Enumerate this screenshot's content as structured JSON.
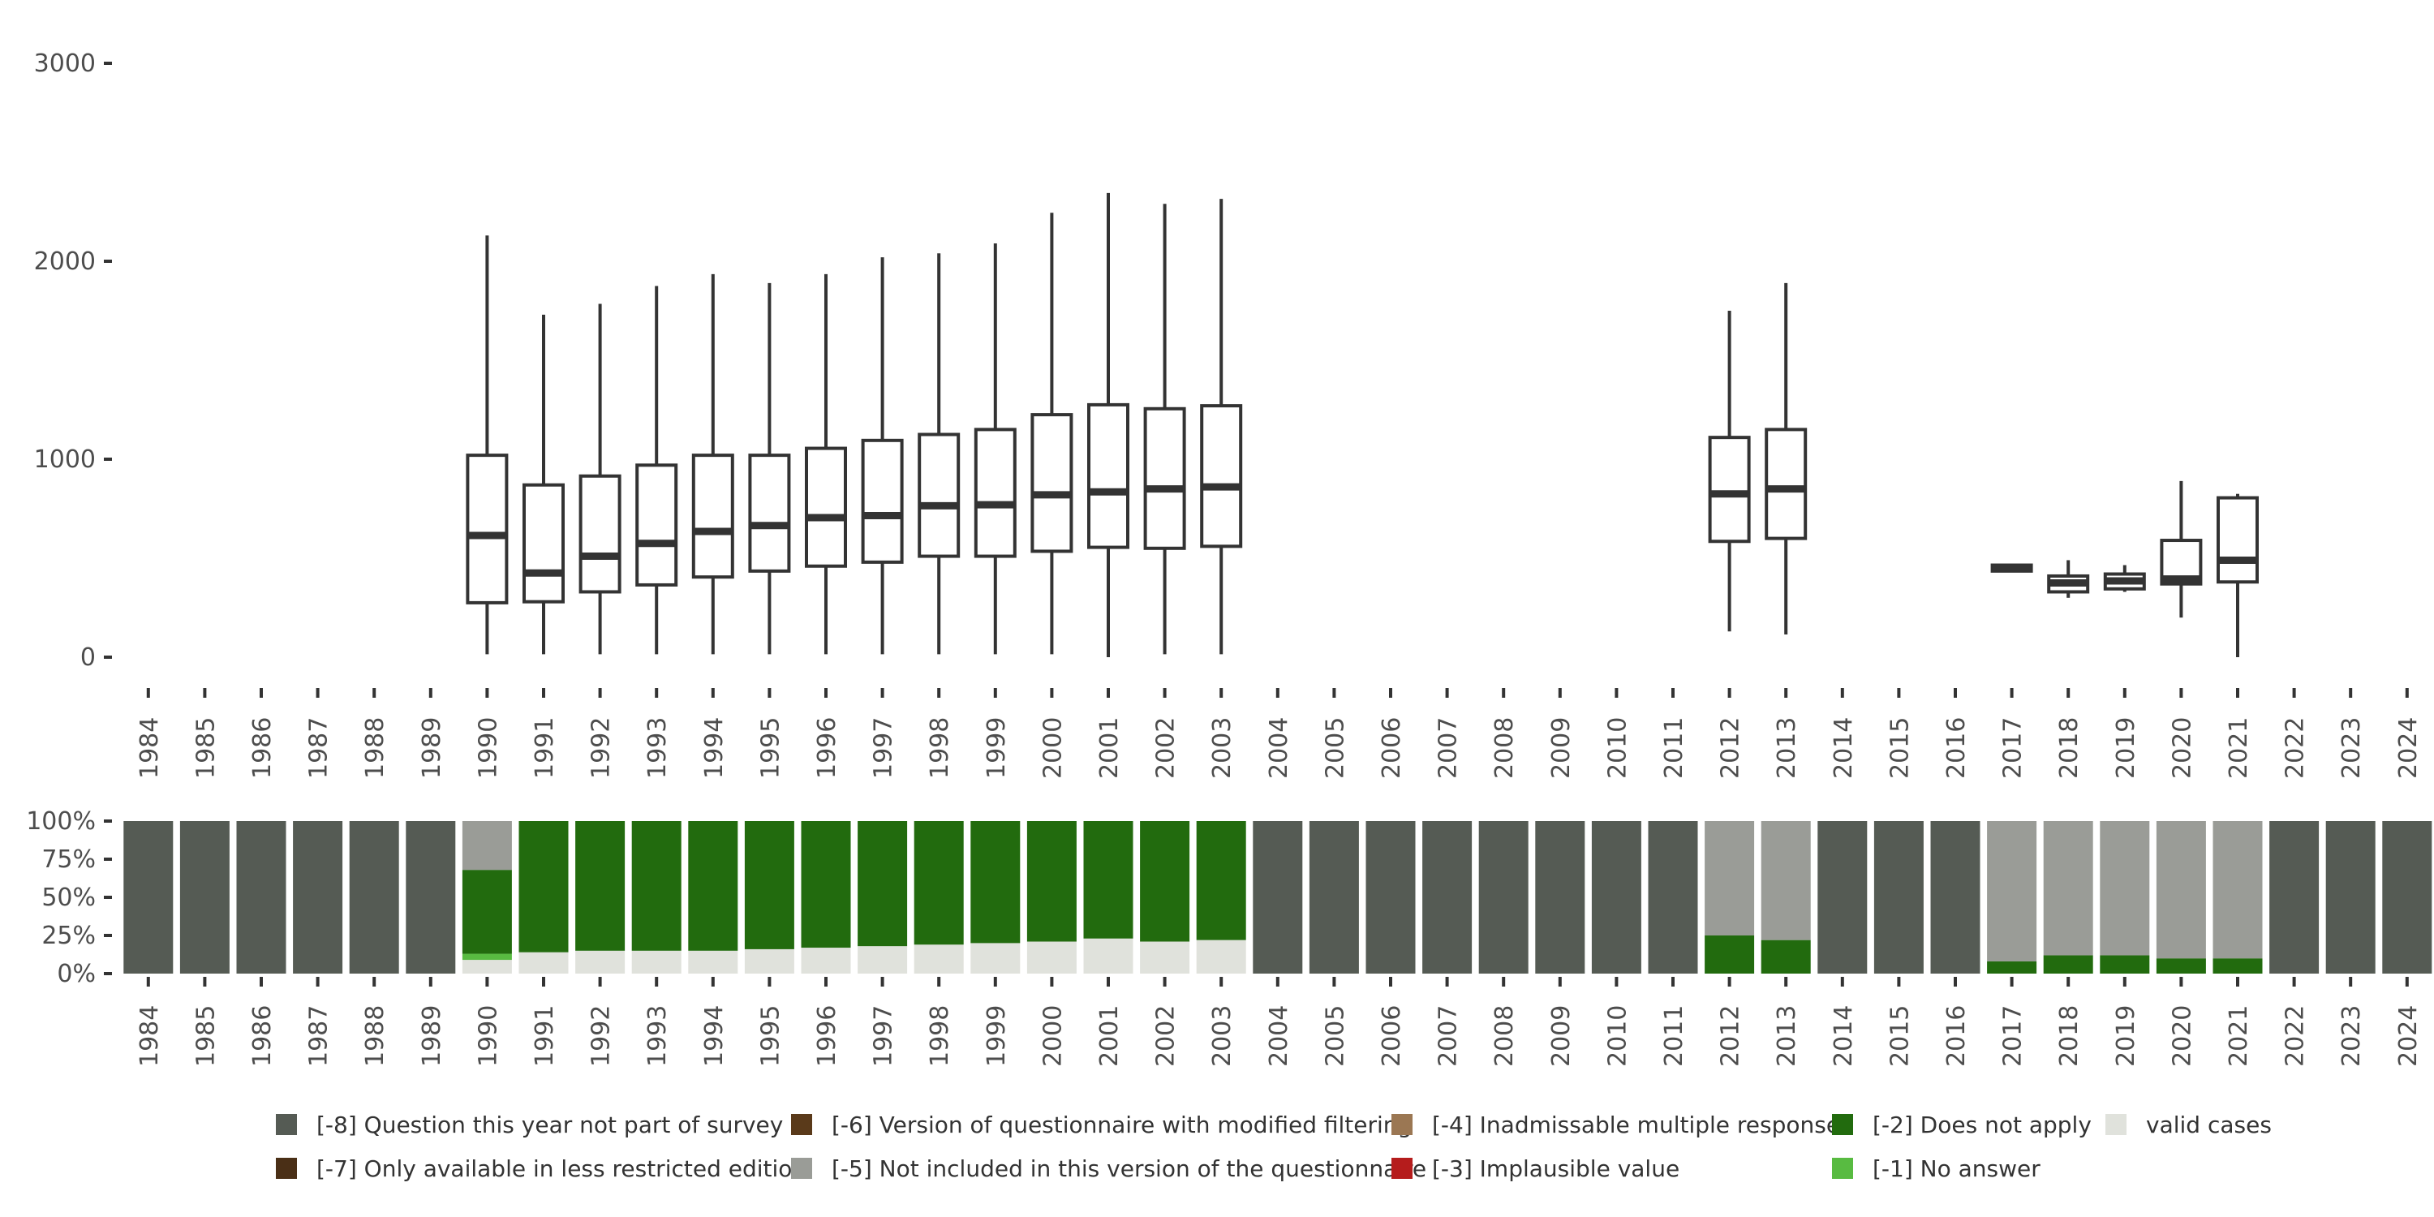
{
  "chart_data": [
    {
      "type": "boxplot",
      "title": "",
      "xlabel": "",
      "ylabel": "",
      "ylim": [
        0,
        3000
      ],
      "yticks": [
        0,
        1000,
        2000,
        3000
      ],
      "ytick_labels": [
        "0",
        "1000",
        "2000",
        "3000"
      ],
      "categories": [
        "1984",
        "1985",
        "1986",
        "1987",
        "1988",
        "1989",
        "1990",
        "1991",
        "1992",
        "1993",
        "1994",
        "1995",
        "1996",
        "1997",
        "1998",
        "1999",
        "2000",
        "2001",
        "2002",
        "2003",
        "2004",
        "2005",
        "2006",
        "2007",
        "2008",
        "2009",
        "2010",
        "2011",
        "2012",
        "2013",
        "2014",
        "2015",
        "2016",
        "2017",
        "2018",
        "2019",
        "2020",
        "2021",
        "2022",
        "2023",
        "2024"
      ],
      "boxes": [
        {
          "year": "1990",
          "min": 15,
          "q1": 275,
          "median": 615,
          "q3": 1020,
          "max": 2130
        },
        {
          "year": "1991",
          "min": 15,
          "q1": 280,
          "median": 425,
          "q3": 870,
          "max": 1730
        },
        {
          "year": "1992",
          "min": 15,
          "q1": 330,
          "median": 510,
          "q3": 915,
          "max": 1785
        },
        {
          "year": "1993",
          "min": 15,
          "q1": 365,
          "median": 575,
          "q3": 970,
          "max": 1875
        },
        {
          "year": "1994",
          "min": 15,
          "q1": 405,
          "median": 635,
          "q3": 1020,
          "max": 1935
        },
        {
          "year": "1995",
          "min": 15,
          "q1": 435,
          "median": 665,
          "q3": 1020,
          "max": 1890
        },
        {
          "year": "1996",
          "min": 15,
          "q1": 460,
          "median": 705,
          "q3": 1055,
          "max": 1935
        },
        {
          "year": "1997",
          "min": 15,
          "q1": 480,
          "median": 715,
          "q3": 1095,
          "max": 2020
        },
        {
          "year": "1998",
          "min": 15,
          "q1": 510,
          "median": 765,
          "q3": 1125,
          "max": 2040
        },
        {
          "year": "1999",
          "min": 15,
          "q1": 510,
          "median": 770,
          "q3": 1150,
          "max": 2090
        },
        {
          "year": "2000",
          "min": 15,
          "q1": 535,
          "median": 820,
          "q3": 1225,
          "max": 2245
        },
        {
          "year": "2001",
          "min": 0,
          "q1": 555,
          "median": 835,
          "q3": 1275,
          "max": 2345
        },
        {
          "year": "2002",
          "min": 15,
          "q1": 550,
          "median": 850,
          "q3": 1255,
          "max": 2290
        },
        {
          "year": "2003",
          "min": 15,
          "q1": 560,
          "median": 860,
          "q3": 1270,
          "max": 2315
        },
        {
          "year": "2012",
          "min": 130,
          "q1": 585,
          "median": 825,
          "q3": 1110,
          "max": 1750
        },
        {
          "year": "2013",
          "min": 115,
          "q1": 600,
          "median": 850,
          "q3": 1150,
          "max": 1890
        },
        {
          "year": "2017",
          "min": 435,
          "q1": 435,
          "median": 450,
          "q3": 465,
          "max": 465
        },
        {
          "year": "2018",
          "min": 300,
          "q1": 330,
          "median": 375,
          "q3": 410,
          "max": 490
        },
        {
          "year": "2019",
          "min": 330,
          "q1": 345,
          "median": 385,
          "q3": 420,
          "max": 465
        },
        {
          "year": "2020",
          "min": 200,
          "q1": 370,
          "median": 395,
          "q3": 590,
          "max": 890
        },
        {
          "year": "2021",
          "min": 0,
          "q1": 380,
          "median": 490,
          "q3": 805,
          "max": 825
        }
      ]
    },
    {
      "type": "stacked_bar",
      "title": "",
      "xlabel": "",
      "ylabel": "",
      "ylim": [
        0,
        100
      ],
      "yticks": [
        0,
        25,
        50,
        75,
        100
      ],
      "ytick_labels": [
        "0%",
        "25%",
        "50%",
        "75%",
        "100%"
      ],
      "categories": [
        "1984",
        "1985",
        "1986",
        "1987",
        "1988",
        "1989",
        "1990",
        "1991",
        "1992",
        "1993",
        "1994",
        "1995",
        "1996",
        "1997",
        "1998",
        "1999",
        "2000",
        "2001",
        "2002",
        "2003",
        "2004",
        "2005",
        "2006",
        "2007",
        "2008",
        "2009",
        "2010",
        "2011",
        "2012",
        "2013",
        "2014",
        "2015",
        "2016",
        "2017",
        "2018",
        "2019",
        "2020",
        "2021",
        "2022",
        "2023",
        "2024"
      ],
      "stack_order": [
        "valid cases",
        "[-1] No answer",
        "[-2] Does not apply",
        "[-5] Not included in this version of the questionnaire",
        "[-8] Question this year not part of survey"
      ],
      "series": [
        {
          "name": "valid cases",
          "color": "#e0e2dc",
          "values": [
            0,
            0,
            0,
            0,
            0,
            0,
            9,
            14,
            15,
            15,
            15,
            16,
            17,
            18,
            19,
            20,
            21,
            23,
            21,
            22,
            0,
            0,
            0,
            0,
            0,
            0,
            0,
            0,
            0,
            0,
            0,
            0,
            0,
            0,
            0,
            0,
            0,
            0,
            0,
            0,
            0
          ]
        },
        {
          "name": "[-1] No answer",
          "color": "#58bb41",
          "values": [
            0,
            0,
            0,
            0,
            0,
            0,
            4,
            0,
            0,
            0,
            0,
            0,
            0,
            0,
            0,
            0,
            0,
            0,
            0,
            0,
            0,
            0,
            0,
            0,
            0,
            0,
            0,
            0,
            0,
            0,
            0,
            0,
            0,
            0,
            0,
            0,
            0,
            0,
            0,
            0,
            0
          ]
        },
        {
          "name": "[-2] Does not apply",
          "color": "#226b0e",
          "values": [
            0,
            0,
            0,
            0,
            0,
            0,
            55,
            86,
            85,
            85,
            85,
            84,
            83,
            82,
            81,
            80,
            79,
            77,
            79,
            78,
            0,
            0,
            0,
            0,
            0,
            0,
            0,
            0,
            25,
            22,
            0,
            0,
            0,
            8,
            12,
            12,
            10,
            10,
            0,
            0,
            0
          ]
        },
        {
          "name": "[-5] Not included in this version of the questionnaire",
          "color": "#9a9c97",
          "values": [
            0,
            0,
            0,
            0,
            0,
            0,
            32,
            0,
            0,
            0,
            0,
            0,
            0,
            0,
            0,
            0,
            0,
            0,
            0,
            0,
            0,
            0,
            0,
            0,
            0,
            0,
            0,
            0,
            75,
            78,
            0,
            0,
            0,
            92,
            88,
            88,
            90,
            90,
            0,
            0,
            0
          ]
        },
        {
          "name": "[-8] Question this year not part of survey",
          "color": "#555b54",
          "values": [
            100,
            100,
            100,
            100,
            100,
            100,
            0,
            0,
            0,
            0,
            0,
            0,
            0,
            0,
            0,
            0,
            0,
            0,
            0,
            0,
            100,
            100,
            100,
            100,
            100,
            100,
            100,
            100,
            0,
            0,
            100,
            100,
            100,
            0,
            0,
            0,
            0,
            0,
            100,
            100,
            100
          ]
        }
      ]
    }
  ],
  "legend": [
    {
      "label": "[-8] Question this year not part of survey",
      "color": "#555b54"
    },
    {
      "label": "[-7] Only available in less restricted edition",
      "color": "#4a2f16"
    },
    {
      "label": "[-6] Version of questionnaire with modified filtering",
      "color": "#5a3a1a"
    },
    {
      "label": "[-5] Not included in this version of the questionnaire",
      "color": "#9a9c97"
    },
    {
      "label": "[-4] Inadmissable multiple response",
      "color": "#9b7753"
    },
    {
      "label": "[-3] Implausible value",
      "color": "#b51c1c"
    },
    {
      "label": "[-2] Does not apply",
      "color": "#226b0e"
    },
    {
      "label": "[-1] No answer",
      "color": "#58bb41"
    },
    {
      "label": "valid cases",
      "color": "#e0e2dc"
    }
  ]
}
